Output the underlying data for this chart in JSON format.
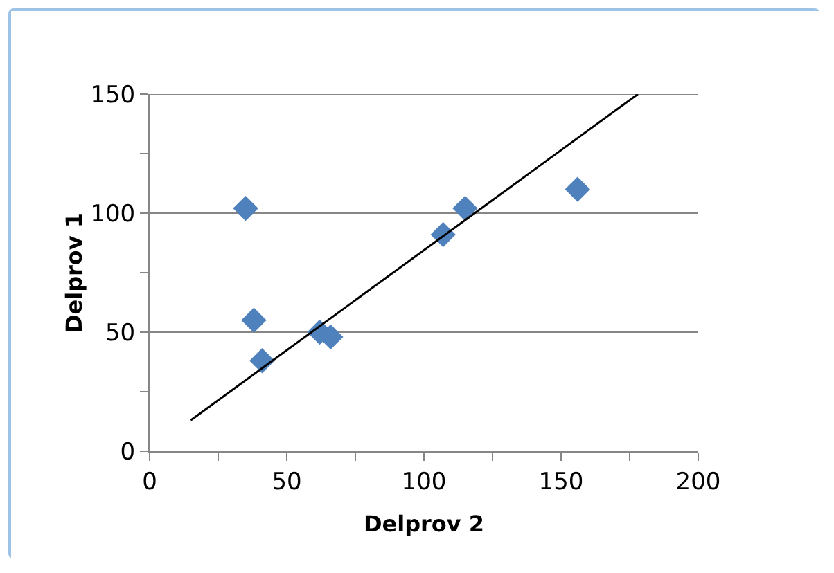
{
  "chart_data": {
    "type": "scatter",
    "xlabel": "Delprov 2",
    "ylabel": "Delprov 1",
    "x": [
      35,
      38,
      41,
      62,
      66,
      107,
      115,
      156
    ],
    "series": [
      {
        "color": "#4f81bd",
        "values": [
          102,
          55,
          38,
          50,
          48,
          91,
          102,
          110
        ]
      },
      {
        "type": "line",
        "marker": "none",
        "color": "#000000",
        "x": [
          15,
          178
        ],
        "values": [
          13,
          150
        ]
      }
    ],
    "marker": "diamond",
    "grid": "y",
    "xlim": [
      0,
      200
    ],
    "xticks": [
      0,
      {
        "value": 25,
        "label": null
      },
      50,
      {
        "value": 75,
        "label": null
      },
      100,
      {
        "value": 125,
        "label": null
      },
      150,
      {
        "value": 175,
        "label": null
      },
      200
    ],
    "ylim": [
      0,
      150
    ],
    "yticks": [
      0,
      {
        "value": 25,
        "label": null
      },
      50,
      {
        "value": 75,
        "label": null
      },
      100,
      {
        "value": 125,
        "label": null
      },
      150
    ]
  }
}
